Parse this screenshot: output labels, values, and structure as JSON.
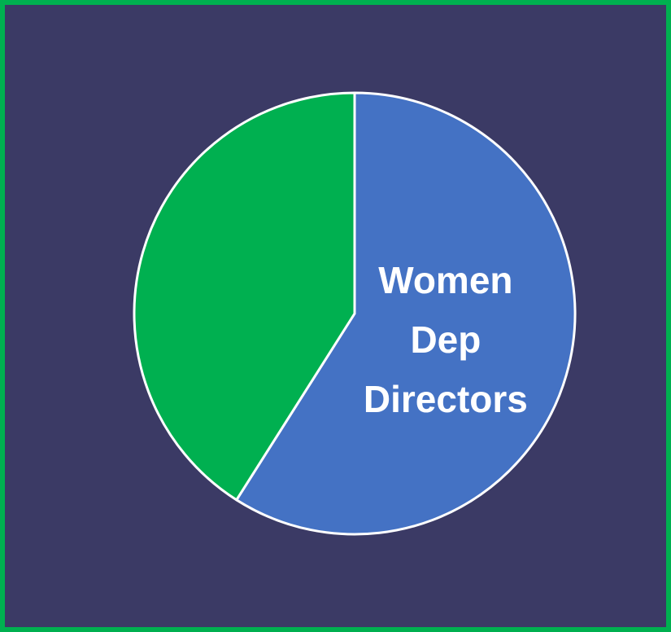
{
  "chart_data": {
    "type": "pie",
    "categories": [
      "Women Dep Directors",
      null
    ],
    "values": [
      59,
      41
    ],
    "colors": [
      "#4472c4",
      "#00b050"
    ]
  }
}
